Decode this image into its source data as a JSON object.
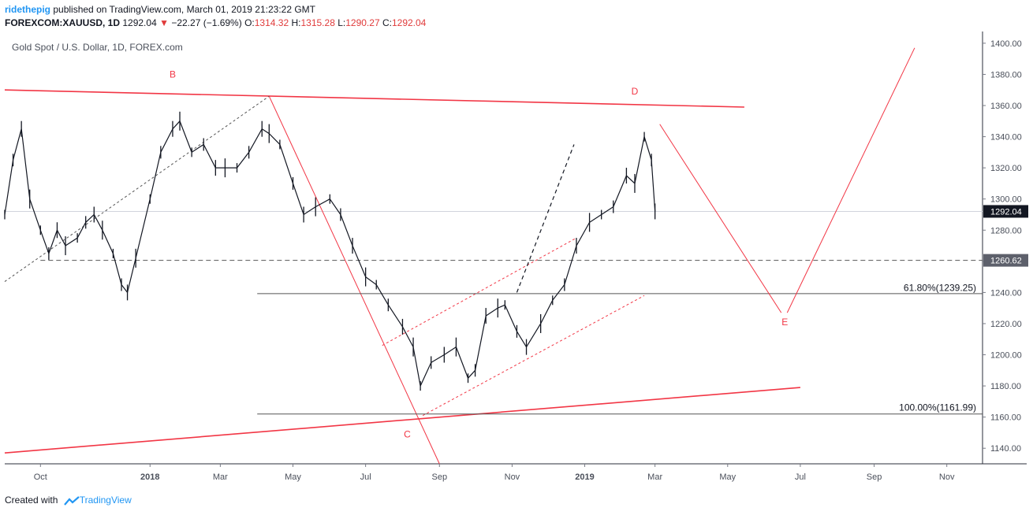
{
  "header": {
    "user": "ridethepig",
    "published_text": "published on TradingView.com, March 01, 2019 21:23:22 GMT",
    "symbol": "FOREXCOM:XAUUSD, 1D",
    "price": "1292.04",
    "change": "−22.27 (−1.69%)",
    "open_label": "O:",
    "open": "1314.32",
    "high_label": "H:",
    "high": "1315.28",
    "low_label": "L:",
    "low": "1290.27",
    "close_label": "C:",
    "close": "1292.04"
  },
  "footer": {
    "created_with": "Created with",
    "brand": "TradingView"
  },
  "colors": {
    "up": "#131722",
    "red": "#f23645",
    "axis": "#787b86",
    "price_tag": "#131722"
  },
  "chart_data": {
    "type": "line",
    "title": "Gold Spot / U.S. Dollar, 1D, FOREX.com",
    "ylim": [
      1130,
      1405
    ],
    "xlim": [
      "2017-09-01",
      "2019-12-01"
    ],
    "y_ticks": [
      1140,
      1160,
      1180,
      1200,
      1220,
      1240,
      1260,
      1280,
      1300,
      1320,
      1340,
      1360,
      1380,
      1400
    ],
    "x_ticks": [
      {
        "date": "2017-10-01",
        "label": "Oct"
      },
      {
        "date": "2018-01-01",
        "label": "2018"
      },
      {
        "date": "2018-03-01",
        "label": "Mar"
      },
      {
        "date": "2018-05-01",
        "label": "May"
      },
      {
        "date": "2018-07-01",
        "label": "Jul"
      },
      {
        "date": "2018-09-01",
        "label": "Sep"
      },
      {
        "date": "2018-11-01",
        "label": "Nov"
      },
      {
        "date": "2019-01-01",
        "label": "2019"
      },
      {
        "date": "2019-03-01",
        "label": "Mar"
      },
      {
        "date": "2019-05-01",
        "label": "May"
      },
      {
        "date": "2019-07-01",
        "label": "Jul"
      },
      {
        "date": "2019-09-01",
        "label": "Sep"
      },
      {
        "date": "2019-11-01",
        "label": "Nov"
      }
    ],
    "series": [
      {
        "style": "ohlc",
        "x": [
          "2017-09-01",
          "2017-09-08",
          "2017-09-15",
          "2017-09-22",
          "2017-10-01",
          "2017-10-08",
          "2017-10-15",
          "2017-10-22",
          "2017-11-01",
          "2017-11-08",
          "2017-11-15",
          "2017-11-22",
          "2017-12-01",
          "2017-12-08",
          "2017-12-13",
          "2017-12-20",
          "2018-01-01",
          "2018-01-10",
          "2018-01-20",
          "2018-01-26",
          "2018-02-05",
          "2018-02-15",
          "2018-02-25",
          "2018-03-05",
          "2018-03-15",
          "2018-03-25",
          "2018-04-05",
          "2018-04-11",
          "2018-04-20",
          "2018-05-01",
          "2018-05-10",
          "2018-05-20",
          "2018-06-01",
          "2018-06-10",
          "2018-06-20",
          "2018-07-01",
          "2018-07-10",
          "2018-07-20",
          "2018-08-01",
          "2018-08-10",
          "2018-08-16",
          "2018-08-25",
          "2018-09-05",
          "2018-09-15",
          "2018-09-25",
          "2018-10-01",
          "2018-10-10",
          "2018-10-20",
          "2018-10-26",
          "2018-11-05",
          "2018-11-13",
          "2018-11-25",
          "2018-12-05",
          "2018-12-15",
          "2018-12-25",
          "2019-01-05",
          "2019-01-15",
          "2019-01-25",
          "2019-02-05",
          "2019-02-12",
          "2019-02-20",
          "2019-02-26",
          "2019-03-01"
        ],
        "y": [
          1290,
          1325,
          1345,
          1300,
          1280,
          1265,
          1280,
          1270,
          1275,
          1285,
          1290,
          1280,
          1265,
          1245,
          1240,
          1262,
          1300,
          1330,
          1345,
          1350,
          1330,
          1335,
          1320,
          1320,
          1320,
          1330,
          1345,
          1342,
          1335,
          1310,
          1290,
          1295,
          1300,
          1290,
          1270,
          1250,
          1245,
          1232,
          1218,
          1205,
          1180,
          1195,
          1200,
          1205,
          1185,
          1190,
          1225,
          1230,
          1232,
          1215,
          1205,
          1220,
          1235,
          1245,
          1270,
          1285,
          1290,
          1295,
          1315,
          1310,
          1340,
          1325,
          1292.04
        ]
      }
    ],
    "annotations": [
      {
        "text": "B",
        "x": "2018-01-20",
        "y": 1380
      },
      {
        "text": "D",
        "x": "2019-02-12",
        "y": 1369
      },
      {
        "text": "C",
        "x": "2018-08-05",
        "y": 1149
      },
      {
        "text": "E",
        "x": "2019-06-18",
        "y": 1221
      },
      {
        "text": "61.80%(1239.25)",
        "x": "2019-07-25",
        "y": 1241
      },
      {
        "text": "100.00%(1161.99)",
        "x": "2019-07-25",
        "y": 1164
      }
    ],
    "price_tags": [
      {
        "text": "1292.04",
        "y": 1292.04
      },
      {
        "text": "1260.62",
        "y": 1260.62
      }
    ]
  }
}
